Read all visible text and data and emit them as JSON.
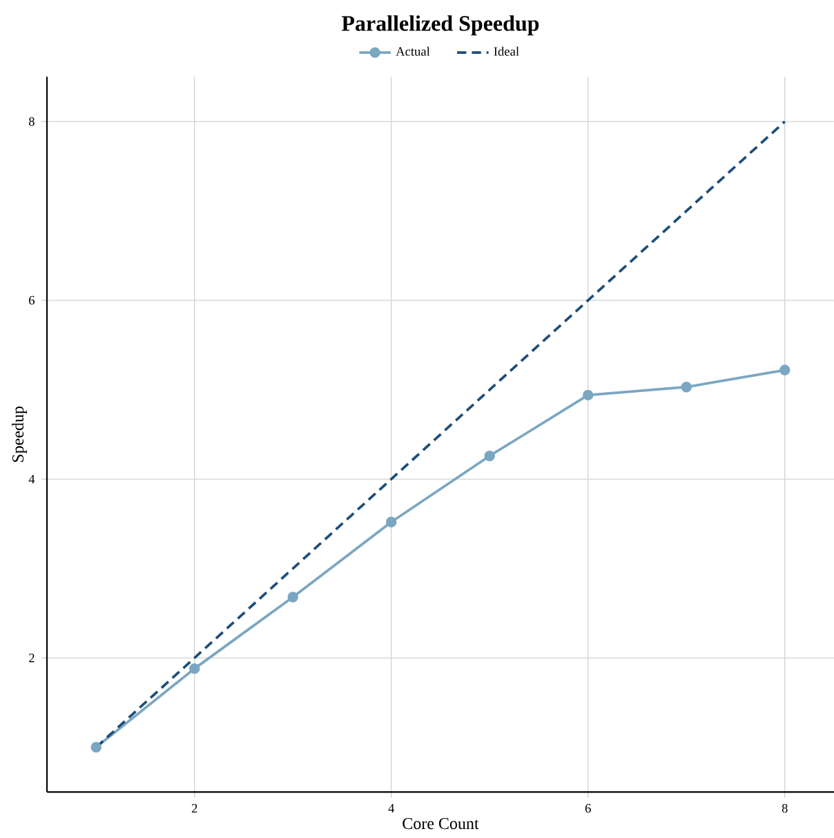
{
  "chart_data": {
    "type": "line",
    "title": "Parallelized Speedup",
    "xlabel": "Core Count",
    "ylabel": "Speedup",
    "x": [
      1,
      2,
      3,
      4,
      5,
      6,
      7,
      8
    ],
    "series": [
      {
        "name": "Actual",
        "color": "#7ba6c2",
        "marker": "circle",
        "line_style": "solid",
        "values": [
          1.0,
          1.88,
          2.68,
          3.52,
          4.26,
          4.94,
          5.03,
          5.22
        ]
      },
      {
        "name": "Ideal",
        "color": "#1f4e79",
        "marker": "none",
        "line_style": "dashed",
        "values": [
          1,
          2,
          3,
          4,
          5,
          6,
          7,
          8
        ]
      }
    ],
    "xlim": [
      0.5,
      8.5
    ],
    "ylim": [
      0.5,
      8.5
    ],
    "xticks": [
      2,
      4,
      6,
      8
    ],
    "yticks": [
      2,
      4,
      6,
      8
    ],
    "grid": true,
    "legend": "top"
  }
}
